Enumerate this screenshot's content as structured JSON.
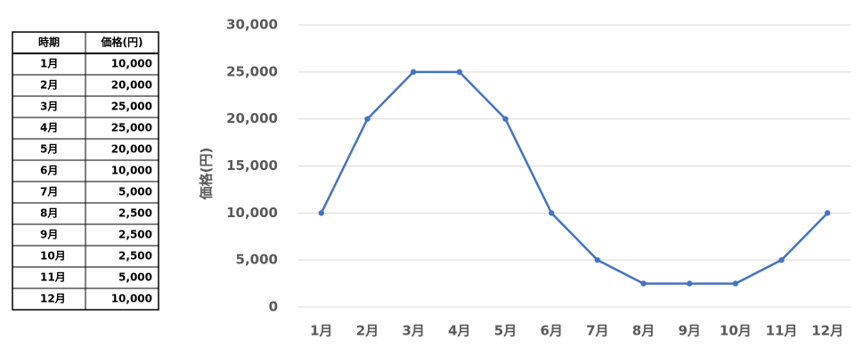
{
  "table": {
    "header": [
      "時期",
      "価格(円)"
    ],
    "rows": [
      [
        "1月",
        "10,000"
      ],
      [
        "2月",
        "20,000"
      ],
      [
        "3月",
        "25,000"
      ],
      [
        "4月",
        "25,000"
      ],
      [
        "5月",
        "20,000"
      ],
      [
        "6月",
        "10,000"
      ],
      [
        "7月",
        "5,000"
      ],
      [
        "8月",
        "2,500"
      ],
      [
        "9月",
        "2,500"
      ],
      [
        "10月",
        "2,500"
      ],
      [
        "11月",
        "5,000"
      ],
      [
        "12月",
        "10,000"
      ]
    ]
  },
  "chart_data": {
    "type": "line",
    "ylabel": "価格(円)",
    "categories": [
      "1月",
      "2月",
      "3月",
      "4月",
      "5月",
      "6月",
      "7月",
      "8月",
      "9月",
      "10月",
      "11月",
      "12月"
    ],
    "values": [
      10000,
      20000,
      25000,
      25000,
      20000,
      10000,
      5000,
      2500,
      2500,
      2500,
      5000,
      10000
    ],
    "color": "#4472c4",
    "ylim": [
      0,
      30000
    ],
    "yticks": [
      0,
      {
        "value": 5000,
        "label": "5,000"
      },
      {
        "value": 10000,
        "label": "10,000"
      },
      {
        "value": 15000,
        "label": "15,000"
      },
      {
        "value": 20000,
        "label": "20,000"
      },
      {
        "value": 25000,
        "label": "25,000"
      },
      {
        "value": 30000,
        "label": "30,000"
      }
    ],
    "grid": true
  }
}
